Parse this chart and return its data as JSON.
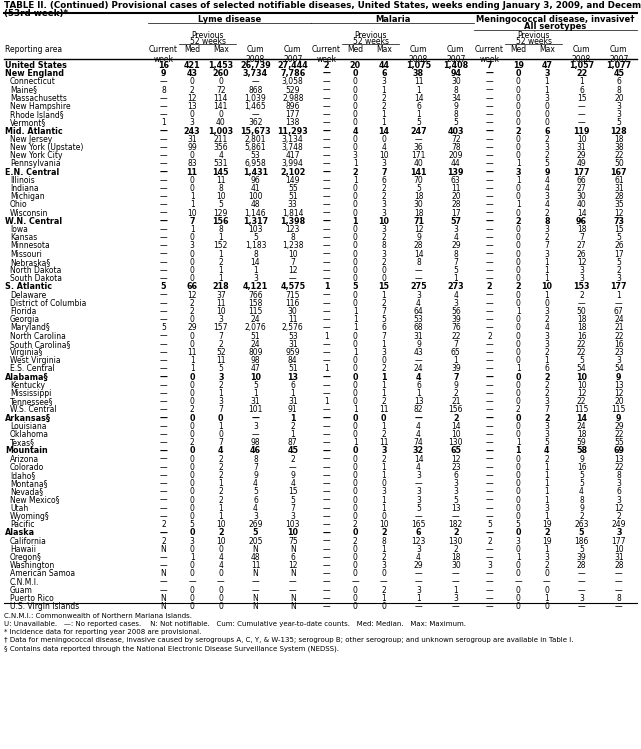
{
  "title_line1": "TABLE II. (Continued) Provisional cases of selected notifiable diseases, United States, weeks ending January 3, 2009, and December 29, 2007",
  "title_line2": "(53rd week)*",
  "disease_headers": [
    "Lyme disease",
    "Malaria",
    "Meningococcal disease, invasive†\nAll serotypes"
  ],
  "rows": [
    [
      "United States",
      "16",
      "421",
      "1,453",
      "26,739",
      "27,444",
      "2",
      "20",
      "44",
      "1,075",
      "1,408",
      "7",
      "19",
      "47",
      "1,057",
      "1,077"
    ],
    [
      "New England",
      "9",
      "43",
      "260",
      "3,734",
      "7,786",
      "—",
      "0",
      "6",
      "38",
      "94",
      "—",
      "0",
      "3",
      "22",
      "45"
    ],
    [
      "Connecticut",
      "—",
      "0",
      "0",
      "—",
      "3,058",
      "—",
      "0",
      "3",
      "11",
      "30",
      "—",
      "0",
      "1",
      "1",
      "6"
    ],
    [
      "Maine§",
      "8",
      "2",
      "72",
      "868",
      "529",
      "—",
      "0",
      "1",
      "1",
      "8",
      "—",
      "0",
      "1",
      "6",
      "8"
    ],
    [
      "Massachusetts",
      "—",
      "12",
      "114",
      "1,039",
      "2,988",
      "—",
      "0",
      "2",
      "14",
      "34",
      "—",
      "0",
      "3",
      "15",
      "20"
    ],
    [
      "New Hampshire",
      "—",
      "13",
      "141",
      "1,465",
      "896",
      "—",
      "0",
      "2",
      "6",
      "9",
      "—",
      "0",
      "0",
      "—",
      "3"
    ],
    [
      "Rhode Island§",
      "—",
      "0",
      "0",
      "—",
      "177",
      "—",
      "0",
      "1",
      "1",
      "8",
      "—",
      "0",
      "0",
      "—",
      "3"
    ],
    [
      "Vermont§",
      "1",
      "3",
      "40",
      "362",
      "138",
      "—",
      "0",
      "1",
      "5",
      "5",
      "—",
      "0",
      "0",
      "—",
      "5"
    ],
    [
      "Mid. Atlantic",
      "—",
      "243",
      "1,003",
      "15,673",
      "11,293",
      "—",
      "4",
      "14",
      "247",
      "403",
      "—",
      "2",
      "6",
      "119",
      "128"
    ],
    [
      "New Jersey",
      "—",
      "31",
      "211",
      "2,801",
      "3,134",
      "—",
      "0",
      "0",
      "—",
      "72",
      "—",
      "0",
      "2",
      "10",
      "18"
    ],
    [
      "New York (Upstate)",
      "—",
      "99",
      "356",
      "5,861",
      "3,748",
      "—",
      "0",
      "4",
      "36",
      "78",
      "—",
      "0",
      "3",
      "31",
      "38"
    ],
    [
      "New York City",
      "—",
      "0",
      "4",
      "53",
      "417",
      "—",
      "3",
      "10",
      "171",
      "209",
      "—",
      "0",
      "2",
      "29",
      "22"
    ],
    [
      "Pennsylvania",
      "—",
      "83",
      "531",
      "6,958",
      "3,994",
      "—",
      "1",
      "3",
      "40",
      "44",
      "—",
      "1",
      "5",
      "49",
      "50"
    ],
    [
      "E.N. Central",
      "—",
      "11",
      "145",
      "1,431",
      "2,102",
      "—",
      "2",
      "7",
      "141",
      "139",
      "—",
      "3",
      "9",
      "177",
      "167"
    ],
    [
      "Illinois",
      "—",
      "0",
      "11",
      "96",
      "149",
      "—",
      "1",
      "6",
      "70",
      "63",
      "—",
      "1",
      "4",
      "66",
      "61"
    ],
    [
      "Indiana",
      "—",
      "0",
      "8",
      "41",
      "55",
      "—",
      "0",
      "2",
      "5",
      "11",
      "—",
      "0",
      "4",
      "27",
      "31"
    ],
    [
      "Michigan",
      "—",
      "1",
      "10",
      "100",
      "51",
      "—",
      "0",
      "2",
      "18",
      "20",
      "—",
      "0",
      "3",
      "30",
      "28"
    ],
    [
      "Ohio",
      "—",
      "1",
      "5",
      "48",
      "33",
      "—",
      "0",
      "3",
      "30",
      "28",
      "—",
      "1",
      "4",
      "40",
      "35"
    ],
    [
      "Wisconsin",
      "—",
      "10",
      "129",
      "1,146",
      "1,814",
      "—",
      "0",
      "3",
      "18",
      "17",
      "—",
      "0",
      "2",
      "14",
      "12"
    ],
    [
      "W.N. Central",
      "—",
      "7",
      "156",
      "1,317",
      "1,398",
      "—",
      "1",
      "10",
      "71",
      "57",
      "—",
      "2",
      "8",
      "96",
      "73"
    ],
    [
      "Iowa",
      "—",
      "1",
      "8",
      "103",
      "123",
      "—",
      "0",
      "3",
      "12",
      "3",
      "—",
      "0",
      "3",
      "18",
      "15"
    ],
    [
      "Kansas",
      "—",
      "0",
      "1",
      "5",
      "8",
      "—",
      "0",
      "2",
      "9",
      "4",
      "—",
      "0",
      "2",
      "7",
      "5"
    ],
    [
      "Minnesota",
      "—",
      "3",
      "152",
      "1,183",
      "1,238",
      "—",
      "0",
      "8",
      "28",
      "29",
      "—",
      "0",
      "7",
      "27",
      "26"
    ],
    [
      "Missouri",
      "—",
      "0",
      "1",
      "8",
      "10",
      "—",
      "0",
      "3",
      "14",
      "8",
      "—",
      "0",
      "3",
      "26",
      "17"
    ],
    [
      "Nebraska§",
      "—",
      "0",
      "2",
      "14",
      "7",
      "—",
      "0",
      "2",
      "8",
      "7",
      "—",
      "0",
      "1",
      "12",
      "5"
    ],
    [
      "North Dakota",
      "—",
      "0",
      "1",
      "1",
      "12",
      "—",
      "0",
      "0",
      "—",
      "5",
      "—",
      "0",
      "1",
      "3",
      "2"
    ],
    [
      "South Dakota",
      "—",
      "0",
      "1",
      "3",
      "—",
      "—",
      "0",
      "0",
      "—",
      "1",
      "—",
      "0",
      "1",
      "3",
      "3"
    ],
    [
      "S. Atlantic",
      "5",
      "66",
      "218",
      "4,121",
      "4,575",
      "1",
      "5",
      "15",
      "275",
      "273",
      "2",
      "2",
      "10",
      "153",
      "177"
    ],
    [
      "Delaware",
      "—",
      "12",
      "37",
      "766",
      "715",
      "—",
      "0",
      "1",
      "3",
      "4",
      "—",
      "0",
      "1",
      "2",
      "1"
    ],
    [
      "District of Columbia",
      "—",
      "2",
      "11",
      "158",
      "116",
      "—",
      "0",
      "2",
      "4",
      "3",
      "—",
      "0",
      "0",
      "—",
      "—"
    ],
    [
      "Florida",
      "—",
      "2",
      "10",
      "115",
      "30",
      "—",
      "1",
      "7",
      "64",
      "56",
      "—",
      "1",
      "3",
      "50",
      "67"
    ],
    [
      "Georgia",
      "—",
      "0",
      "3",
      "24",
      "11",
      "—",
      "1",
      "5",
      "53",
      "39",
      "—",
      "0",
      "2",
      "18",
      "24"
    ],
    [
      "Maryland§",
      "5",
      "29",
      "157",
      "2,076",
      "2,576",
      "—",
      "1",
      "6",
      "68",
      "76",
      "—",
      "0",
      "4",
      "18",
      "21"
    ],
    [
      "North Carolina",
      "—",
      "0",
      "7",
      "51",
      "53",
      "1",
      "0",
      "7",
      "31",
      "22",
      "2",
      "0",
      "3",
      "16",
      "22"
    ],
    [
      "South Carolina§",
      "—",
      "0",
      "2",
      "24",
      "31",
      "—",
      "0",
      "1",
      "9",
      "7",
      "—",
      "0",
      "3",
      "22",
      "16"
    ],
    [
      "Virginia§",
      "—",
      "11",
      "52",
      "809",
      "959",
      "—",
      "1",
      "3",
      "43",
      "65",
      "—",
      "0",
      "2",
      "22",
      "23"
    ],
    [
      "West Virginia",
      "—",
      "1",
      "11",
      "98",
      "84",
      "—",
      "0",
      "0",
      "—",
      "1",
      "—",
      "0",
      "1",
      "5",
      "3"
    ],
    [
      "E.S. Central",
      "—",
      "1",
      "5",
      "47",
      "51",
      "1",
      "0",
      "2",
      "24",
      "39",
      "—",
      "1",
      "6",
      "54",
      "54"
    ],
    [
      "Alabama§",
      "—",
      "0",
      "3",
      "10",
      "13",
      "—",
      "0",
      "1",
      "4",
      "7",
      "—",
      "0",
      "2",
      "10",
      "9"
    ],
    [
      "Kentucky",
      "—",
      "0",
      "2",
      "5",
      "6",
      "—",
      "0",
      "1",
      "6",
      "9",
      "—",
      "0",
      "2",
      "10",
      "13"
    ],
    [
      "Mississippi",
      "—",
      "0",
      "1",
      "1",
      "1",
      "—",
      "0",
      "1",
      "1",
      "2",
      "—",
      "0",
      "2",
      "12",
      "12"
    ],
    [
      "Tennessee§",
      "—",
      "0",
      "3",
      "31",
      "31",
      "1",
      "0",
      "2",
      "13",
      "21",
      "—",
      "0",
      "3",
      "22",
      "20"
    ],
    [
      "W.S. Central",
      "—",
      "2",
      "7",
      "101",
      "91",
      "—",
      "1",
      "11",
      "82",
      "156",
      "—",
      "2",
      "7",
      "115",
      "115"
    ],
    [
      "Arkansas§",
      "—",
      "0",
      "0",
      "—",
      "1",
      "—",
      "0",
      "0",
      "—",
      "2",
      "—",
      "0",
      "2",
      "14",
      "9"
    ],
    [
      "Louisiana",
      "—",
      "0",
      "1",
      "3",
      "2",
      "—",
      "0",
      "1",
      "4",
      "14",
      "—",
      "0",
      "3",
      "24",
      "29"
    ],
    [
      "Oklahoma",
      "—",
      "0",
      "0",
      "—",
      "1",
      "—",
      "0",
      "2",
      "4",
      "10",
      "—",
      "0",
      "3",
      "18",
      "22"
    ],
    [
      "Texas§",
      "—",
      "2",
      "7",
      "98",
      "87",
      "—",
      "1",
      "11",
      "74",
      "130",
      "—",
      "1",
      "5",
      "59",
      "55"
    ],
    [
      "Mountain",
      "—",
      "0",
      "4",
      "46",
      "45",
      "—",
      "0",
      "3",
      "32",
      "65",
      "—",
      "1",
      "4",
      "58",
      "69"
    ],
    [
      "Arizona",
      "—",
      "0",
      "2",
      "8",
      "2",
      "—",
      "0",
      "2",
      "14",
      "12",
      "—",
      "0",
      "2",
      "9",
      "13"
    ],
    [
      "Colorado",
      "—",
      "0",
      "2",
      "7",
      "—",
      "—",
      "0",
      "1",
      "4",
      "23",
      "—",
      "0",
      "1",
      "16",
      "22"
    ],
    [
      "Idaho§",
      "—",
      "0",
      "2",
      "9",
      "9",
      "—",
      "0",
      "1",
      "3",
      "6",
      "—",
      "0",
      "1",
      "5",
      "8"
    ],
    [
      "Montana§",
      "—",
      "0",
      "1",
      "4",
      "4",
      "—",
      "0",
      "0",
      "—",
      "3",
      "—",
      "0",
      "1",
      "5",
      "3"
    ],
    [
      "Nevada§",
      "—",
      "0",
      "2",
      "5",
      "15",
      "—",
      "0",
      "3",
      "3",
      "3",
      "—",
      "0",
      "1",
      "4",
      "6"
    ],
    [
      "New Mexico§",
      "—",
      "0",
      "2",
      "6",
      "5",
      "—",
      "0",
      "1",
      "3",
      "5",
      "—",
      "0",
      "1",
      "8",
      "3"
    ],
    [
      "Utah",
      "—",
      "0",
      "1",
      "4",
      "7",
      "—",
      "0",
      "1",
      "5",
      "13",
      "—",
      "0",
      "3",
      "9",
      "12"
    ],
    [
      "Wyoming§",
      "—",
      "0",
      "1",
      "3",
      "3",
      "—",
      "0",
      "0",
      "—",
      "—",
      "—",
      "0",
      "1",
      "2",
      "2"
    ],
    [
      "Pacific",
      "2",
      "5",
      "10",
      "269",
      "103",
      "—",
      "2",
      "10",
      "165",
      "182",
      "5",
      "5",
      "19",
      "263",
      "249"
    ],
    [
      "Alaska",
      "—",
      "0",
      "2",
      "5",
      "10",
      "—",
      "0",
      "2",
      "6",
      "2",
      "—",
      "0",
      "2",
      "5",
      "3"
    ],
    [
      "California",
      "2",
      "3",
      "10",
      "205",
      "75",
      "—",
      "2",
      "8",
      "123",
      "130",
      "2",
      "3",
      "19",
      "186",
      "177"
    ],
    [
      "Hawaii",
      "N",
      "0",
      "0",
      "N",
      "N",
      "—",
      "0",
      "1",
      "3",
      "2",
      "—",
      "0",
      "1",
      "5",
      "10"
    ],
    [
      "Oregon§",
      "—",
      "1",
      "4",
      "48",
      "6",
      "—",
      "0",
      "2",
      "4",
      "18",
      "—",
      "1",
      "3",
      "39",
      "31"
    ],
    [
      "Washington",
      "—",
      "0",
      "4",
      "11",
      "12",
      "—",
      "0",
      "3",
      "29",
      "30",
      "3",
      "0",
      "2",
      "28",
      "28"
    ],
    [
      "American Samoa",
      "N",
      "0",
      "0",
      "N",
      "N",
      "—",
      "0",
      "0",
      "—",
      "—",
      "—",
      "0",
      "0",
      "—",
      "—"
    ],
    [
      "C.N.M.I.",
      "—",
      "—",
      "—",
      "—",
      "—",
      "—",
      "—",
      "—",
      "—",
      "—",
      "—",
      "—",
      "—",
      "—",
      "—"
    ],
    [
      "Guam",
      "—",
      "0",
      "0",
      "—",
      "—",
      "—",
      "0",
      "2",
      "3",
      "1",
      "—",
      "0",
      "0",
      "—",
      "—"
    ],
    [
      "Puerto Rico",
      "N",
      "0",
      "0",
      "N",
      "N",
      "—",
      "0",
      "1",
      "1",
      "3",
      "—",
      "0",
      "1",
      "3",
      "8"
    ],
    [
      "U.S. Virgin Islands",
      "N",
      "0",
      "0",
      "N",
      "N",
      "—",
      "0",
      "0",
      "—",
      "—",
      "—",
      "0",
      "0",
      "—",
      "—"
    ]
  ],
  "bold_rows": [
    0,
    1,
    8,
    13,
    19,
    27,
    38,
    43,
    47,
    57
  ],
  "footnotes": [
    "C.N.M.I.: Commonwealth of Northern Mariana Islands.",
    "U: Unavailable.   —: No reported cases.    N: Not notifiable.   Cum: Cumulative year-to-date counts.   Med: Median.   Max: Maximum.",
    "* Incidence data for reporting year 2008 are provisional.",
    "† Data for meningococcal disease, invasive caused by serogroups A, C, Y, & W-135; serogroup B; other serogroup; and unknown serogroup are available in Table I.",
    "§ Contains data reported through the National Electronic Disease Surveillance System (NEDSS)."
  ]
}
